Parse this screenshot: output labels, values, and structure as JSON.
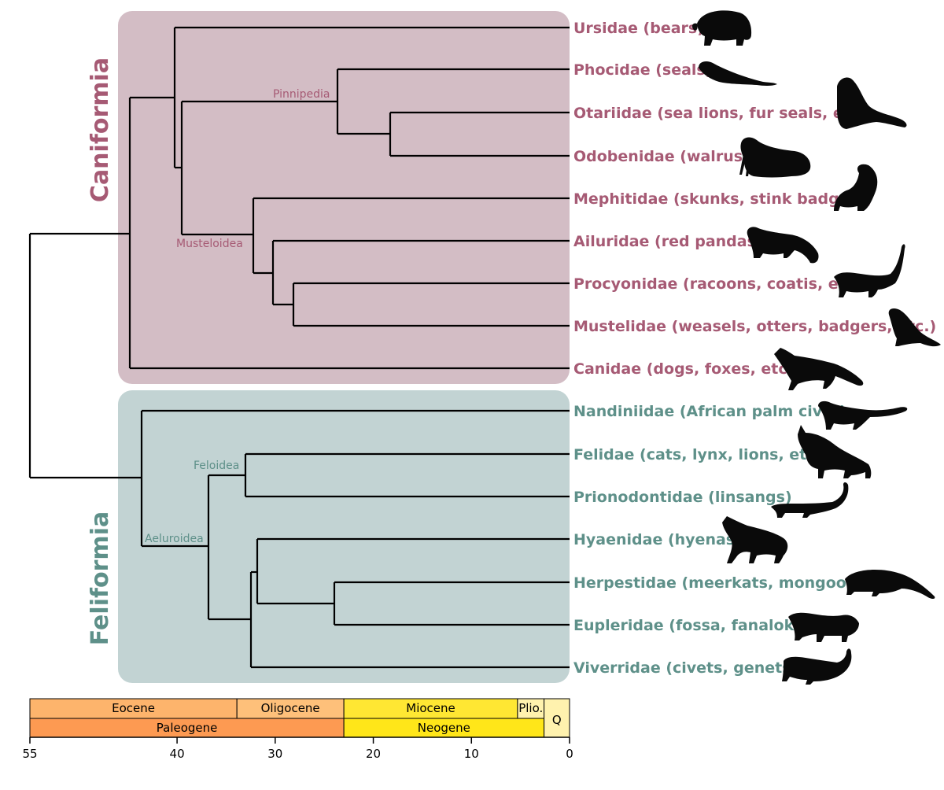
{
  "groups": {
    "caniformia": {
      "label": "Caniformia",
      "color": "#a65a74",
      "bg": "#d3bdc5"
    },
    "feliformia": {
      "label": "Feliformia",
      "color": "#5e9089",
      "bg": "#c2d3d3"
    }
  },
  "clades": {
    "pinnipedia": "Pinnipedia",
    "musteloidea": "Musteloidea",
    "feloidea": "Feloidea",
    "aeluroidea": "Aeluroidea"
  },
  "taxa": [
    {
      "id": "ursidae",
      "label": "Ursidae (bears)",
      "group": "caniformia",
      "silhouette": "bear-icon"
    },
    {
      "id": "phocidae",
      "label": "Phocidae (seals)",
      "group": "caniformia",
      "silhouette": "seal-icon"
    },
    {
      "id": "otariidae",
      "label": "Otariidae (sea lions, fur seals, etc.)",
      "group": "caniformia",
      "silhouette": "sea-lion-icon"
    },
    {
      "id": "odobenidae",
      "label": "Odobenidae (walrus)",
      "group": "caniformia",
      "silhouette": "walrus-icon"
    },
    {
      "id": "mephitidae",
      "label": "Mephitidae (skunks, stink badgers)",
      "group": "caniformia",
      "silhouette": "skunk-icon"
    },
    {
      "id": "ailuridae",
      "label": "Ailuridae (red pandas)",
      "group": "caniformia",
      "silhouette": "red-panda-icon"
    },
    {
      "id": "procyonidae",
      "label": "Procyonidae (racoons, coatis, etc.)",
      "group": "caniformia",
      "silhouette": "coati-icon"
    },
    {
      "id": "mustelidae",
      "label": "Mustelidae (weasels, otters, badgers, etc.)",
      "group": "caniformia",
      "silhouette": "marten-icon"
    },
    {
      "id": "canidae",
      "label": "Canidae (dogs, foxes, etc.)",
      "group": "caniformia",
      "silhouette": "fox-icon"
    },
    {
      "id": "nandiniidae",
      "label": "Nandiniidae (African palm civet)",
      "group": "feliformia",
      "silhouette": "palm-civet-icon"
    },
    {
      "id": "felidae",
      "label": "Felidae (cats, lynx, lions, etc.)",
      "group": "feliformia",
      "silhouette": "lynx-icon"
    },
    {
      "id": "prionodontidae",
      "label": "Prionodontidae (linsangs)",
      "group": "feliformia",
      "silhouette": "linsang-icon"
    },
    {
      "id": "hyaenidae",
      "label": "Hyaenidae (hyenas)",
      "group": "feliformia",
      "silhouette": "hyena-icon"
    },
    {
      "id": "herpestidae",
      "label": "Herpestidae (meerkats, mongooses)",
      "group": "feliformia",
      "silhouette": "mongoose-icon"
    },
    {
      "id": "eupleridae",
      "label": "Eupleridae (fossa, fanaloka)",
      "group": "feliformia",
      "silhouette": "fossa-icon"
    },
    {
      "id": "viverridae",
      "label": "Viverridae (civets, genets)",
      "group": "feliformia",
      "silhouette": "genet-icon"
    }
  ],
  "timescale": {
    "epochs": [
      {
        "label": "Eocene",
        "start": 55,
        "end": 33.9,
        "color": "#fdb46c"
      },
      {
        "label": "Oligocene",
        "start": 33.9,
        "end": 23,
        "color": "#fec07a"
      },
      {
        "label": "Miocene",
        "start": 23,
        "end": 5.3,
        "color": "#ffe733"
      },
      {
        "label": "Plio.",
        "start": 5.3,
        "end": 2.6,
        "color": "#fff2ae"
      },
      {
        "label": "Q",
        "start": 2.6,
        "end": 0,
        "color": "#fff2ae"
      }
    ],
    "periods": [
      {
        "label": "Paleogene",
        "start": 55,
        "end": 23,
        "color": "#fd9a52"
      },
      {
        "label": "Neogene",
        "start": 23,
        "end": 2.6,
        "color": "#ffe619"
      }
    ],
    "ticks": [
      "55",
      "40",
      "30",
      "20",
      "10",
      "0"
    ]
  }
}
